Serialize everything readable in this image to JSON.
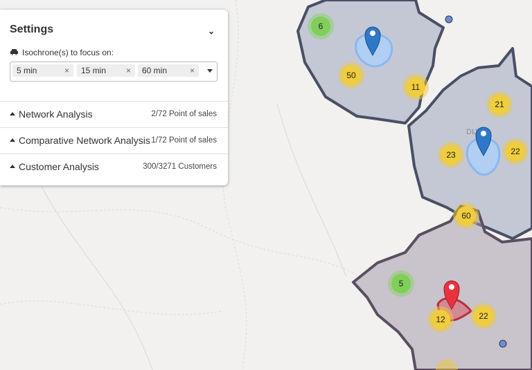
{
  "panel": {
    "title": "Settings",
    "isochrone_label": "Isochrone(s) to focus on:",
    "tags": [
      "5 min",
      "15 min",
      "60 min"
    ],
    "sections": [
      {
        "name": "Network Analysis",
        "count": "2/72 Point of sales"
      },
      {
        "name": "Comparative Network Analysis",
        "count": "1/72 Point of sales"
      },
      {
        "name": "Customer Analysis",
        "count": "300/3271 Customers"
      }
    ]
  },
  "map": {
    "place_label": "DIJ",
    "clusters": [
      {
        "label": "6",
        "kind": "small"
      },
      {
        "label": "50",
        "kind": "medium"
      },
      {
        "label": "11",
        "kind": "medium"
      },
      {
        "label": "21",
        "kind": "medium"
      },
      {
        "label": "23",
        "kind": "medium"
      },
      {
        "label": "22",
        "kind": "medium"
      },
      {
        "label": "60",
        "kind": "medium"
      },
      {
        "label": "5",
        "kind": "small"
      },
      {
        "label": "12",
        "kind": "medium"
      },
      {
        "label": "22",
        "kind": "medium"
      }
    ]
  }
}
